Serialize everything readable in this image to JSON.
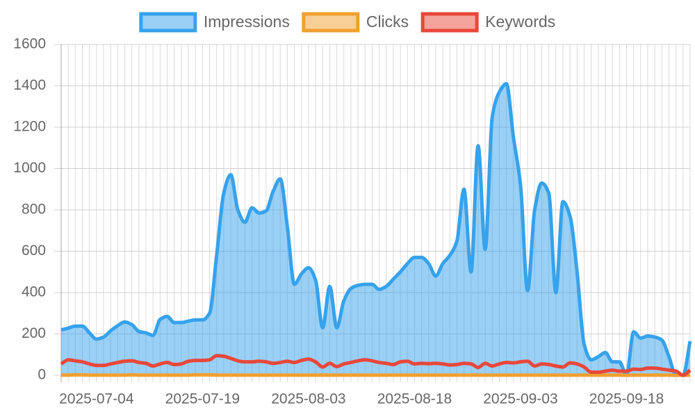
{
  "chart_data": {
    "type": "line",
    "categories": [
      null,
      null,
      null,
      null,
      null,
      "2025-07-04",
      null,
      null,
      null,
      null,
      null,
      null,
      null,
      null,
      null,
      null,
      null,
      null,
      null,
      null,
      "2025-07-19",
      null,
      null,
      null,
      null,
      null,
      null,
      null,
      null,
      null,
      null,
      null,
      null,
      null,
      null,
      "2025-08-03",
      null,
      null,
      null,
      null,
      null,
      null,
      null,
      null,
      null,
      null,
      null,
      null,
      null,
      null,
      "2025-08-18",
      null,
      null,
      null,
      null,
      null,
      null,
      null,
      null,
      null,
      null,
      null,
      null,
      null,
      null,
      "2025-09-03",
      null,
      null,
      null,
      null,
      null,
      null,
      null,
      null,
      null,
      null,
      null,
      null,
      null,
      null,
      "2025-09-18",
      null,
      null,
      null,
      null,
      null,
      null,
      null,
      null,
      null
    ],
    "series": [
      {
        "name": "Impressions",
        "color": "#36a2eb",
        "fill": true,
        "values": [
          220,
          228,
          238,
          238,
          205,
          175,
          185,
          215,
          240,
          258,
          245,
          212,
          205,
          193,
          270,
          285,
          255,
          255,
          262,
          268,
          268,
          300,
          580,
          880,
          970,
          800,
          740,
          810,
          785,
          795,
          890,
          950,
          720,
          440,
          490,
          520,
          460,
          230,
          430,
          230,
          360,
          420,
          435,
          440,
          440,
          415,
          430,
          465,
          500,
          540,
          570,
          570,
          540,
          480,
          540,
          580,
          650,
          900,
          500,
          1110,
          610,
          1250,
          1370,
          1410,
          1150,
          920,
          410,
          800,
          930,
          880,
          400,
          840,
          770,
          500,
          150,
          75,
          90,
          110,
          65,
          65,
          0,
          210,
          180,
          190,
          185,
          170,
          90,
          0,
          0,
          165
        ]
      },
      {
        "name": "Clicks",
        "color": "#f0a030",
        "fill": false,
        "values": [
          1,
          1,
          2,
          2,
          1,
          1,
          1,
          1,
          1,
          1,
          2,
          1,
          1,
          1,
          1,
          1,
          1,
          1,
          1,
          2,
          2,
          2,
          1,
          1,
          1,
          1,
          1,
          1,
          1,
          1,
          1,
          1,
          1,
          1,
          1,
          1,
          1,
          1,
          1,
          1,
          1,
          1,
          1,
          1,
          1,
          1,
          1,
          1,
          1,
          1,
          1,
          1,
          1,
          1,
          1,
          1,
          1,
          1,
          1,
          1,
          1,
          1,
          1,
          1,
          1,
          1,
          1,
          1,
          1,
          1,
          1,
          1,
          1,
          1,
          1,
          1,
          1,
          1,
          1,
          1,
          0,
          1,
          1,
          1,
          1,
          1,
          1,
          0,
          0,
          1
        ]
      },
      {
        "name": "Keywords",
        "color": "#e8473a",
        "fill": false,
        "values": [
          55,
          75,
          70,
          65,
          55,
          48,
          48,
          55,
          62,
          68,
          70,
          62,
          58,
          45,
          55,
          62,
          52,
          55,
          68,
          72,
          72,
          75,
          95,
          92,
          82,
          70,
          65,
          65,
          68,
          65,
          58,
          62,
          68,
          62,
          72,
          78,
          65,
          40,
          58,
          42,
          55,
          62,
          70,
          75,
          70,
          62,
          58,
          52,
          65,
          68,
          55,
          58,
          56,
          58,
          55,
          50,
          52,
          58,
          55,
          38,
          58,
          45,
          55,
          62,
          60,
          65,
          68,
          45,
          55,
          52,
          45,
          40,
          60,
          55,
          40,
          15,
          15,
          20,
          25,
          20,
          20,
          30,
          28,
          35,
          35,
          30,
          25,
          20,
          0,
          25
        ]
      }
    ],
    "ylim": [
      0,
      1600
    ],
    "yticks": [
      0,
      200,
      400,
      600,
      800,
      1000,
      1200,
      1400,
      1600
    ],
    "grid": true,
    "legend": "top"
  }
}
